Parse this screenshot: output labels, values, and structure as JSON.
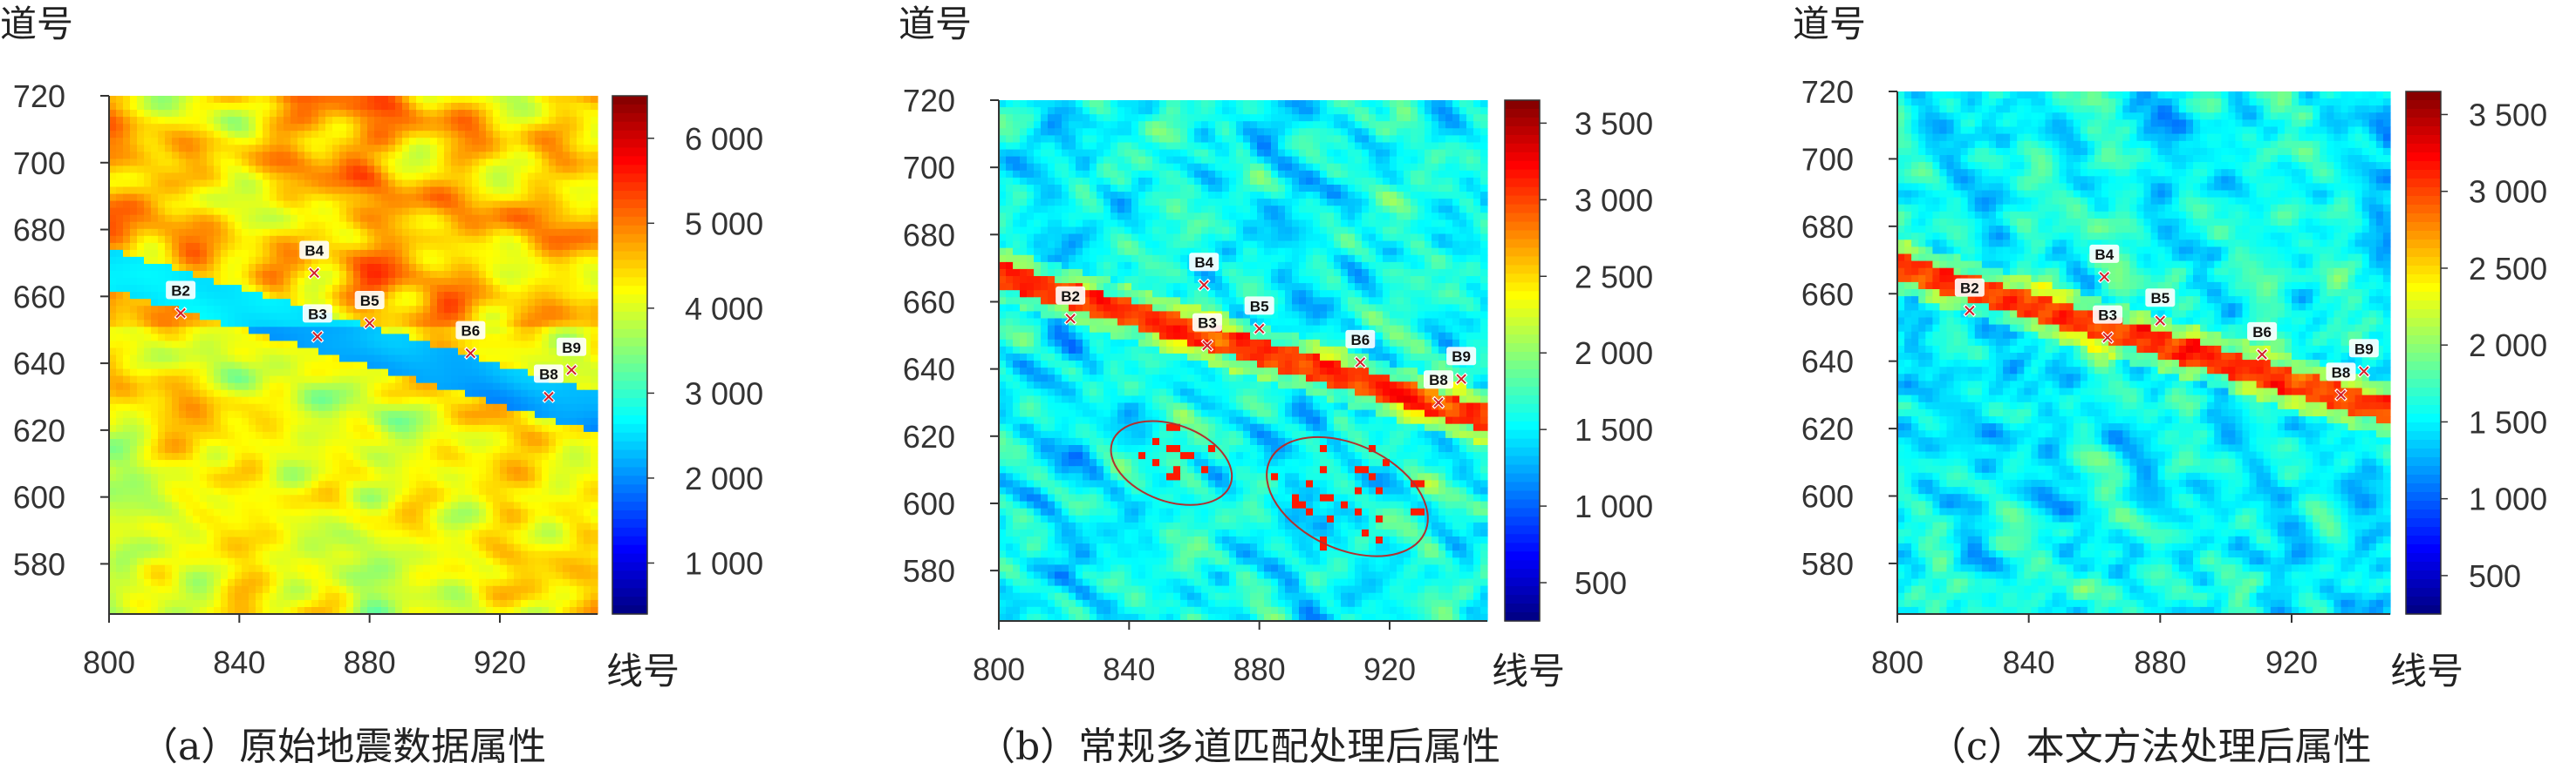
{
  "chart_data": [
    {
      "type": "heatmap",
      "caption": "（a）原始地震数据属性",
      "xlabel": "线号",
      "ylabel": "道号",
      "xticks": [
        "800",
        "840",
        "880",
        "920"
      ],
      "yticks": [
        "720",
        "700",
        "680",
        "660",
        "640",
        "620",
        "600",
        "580"
      ],
      "xlim": [
        800,
        950
      ],
      "ylim": [
        565,
        720
      ],
      "colorbar": {
        "ticks": [
          "6 000",
          "5 000",
          "4 000",
          "3 000",
          "2 000",
          "1 000"
        ],
        "values": [
          6000,
          5000,
          4000,
          3000,
          2000,
          1000
        ],
        "range": [
          400,
          6500
        ]
      },
      "wells": [
        {
          "name": "B2",
          "x": 822,
          "y": 655
        },
        {
          "name": "B4",
          "x": 863,
          "y": 667
        },
        {
          "name": "B3",
          "x": 864,
          "y": 648
        },
        {
          "name": "B5",
          "x": 880,
          "y": 652
        },
        {
          "name": "B6",
          "x": 911,
          "y": 643
        },
        {
          "name": "B8",
          "x": 935,
          "y": 630
        },
        {
          "name": "B9",
          "x": 942,
          "y": 638
        }
      ]
    },
    {
      "type": "heatmap",
      "caption": "（b）常规多道匹配处理后属性",
      "xlabel": "线号",
      "ylabel": "道号",
      "xticks": [
        "800",
        "840",
        "880",
        "920"
      ],
      "yticks": [
        "720",
        "700",
        "680",
        "660",
        "640",
        "620",
        "600",
        "580"
      ],
      "xlim": [
        800,
        950
      ],
      "ylim": [
        565,
        720
      ],
      "colorbar": {
        "ticks": [
          "3 500",
          "3 000",
          "2 500",
          "2 000",
          "1 500",
          "1 000",
          "500"
        ],
        "values": [
          3500,
          3000,
          2500,
          2000,
          1500,
          1000,
          500
        ],
        "range": [
          250,
          3650
        ]
      },
      "wells": [
        {
          "name": "B2",
          "x": 822,
          "y": 655
        },
        {
          "name": "B4",
          "x": 863,
          "y": 665
        },
        {
          "name": "B3",
          "x": 864,
          "y": 647
        },
        {
          "name": "B5",
          "x": 880,
          "y": 652
        },
        {
          "name": "B6",
          "x": 911,
          "y": 642
        },
        {
          "name": "B8",
          "x": 935,
          "y": 630
        },
        {
          "name": "B9",
          "x": 942,
          "y": 637
        }
      ],
      "annotations": [
        "ellipse",
        "ellipse"
      ]
    },
    {
      "type": "heatmap",
      "caption": "（c）本文方法处理后属性",
      "xlabel": "线号",
      "ylabel": "道号",
      "xticks": [
        "800",
        "840",
        "880",
        "920"
      ],
      "yticks": [
        "720",
        "700",
        "680",
        "660",
        "640",
        "620",
        "600",
        "580"
      ],
      "xlim": [
        800,
        950
      ],
      "ylim": [
        565,
        720
      ],
      "colorbar": {
        "ticks": [
          "3 500",
          "3 000",
          "2 500",
          "2 000",
          "1 500",
          "1 000",
          "500"
        ],
        "values": [
          3500,
          3000,
          2500,
          2000,
          1500,
          1000,
          500
        ],
        "range": [
          250,
          3650
        ]
      },
      "wells": [
        {
          "name": "B2",
          "x": 822,
          "y": 655
        },
        {
          "name": "B4",
          "x": 863,
          "y": 665
        },
        {
          "name": "B3",
          "x": 864,
          "y": 647
        },
        {
          "name": "B5",
          "x": 880,
          "y": 652
        },
        {
          "name": "B6",
          "x": 911,
          "y": 642
        },
        {
          "name": "B8",
          "x": 935,
          "y": 630
        },
        {
          "name": "B9",
          "x": 942,
          "y": 637
        }
      ]
    }
  ]
}
